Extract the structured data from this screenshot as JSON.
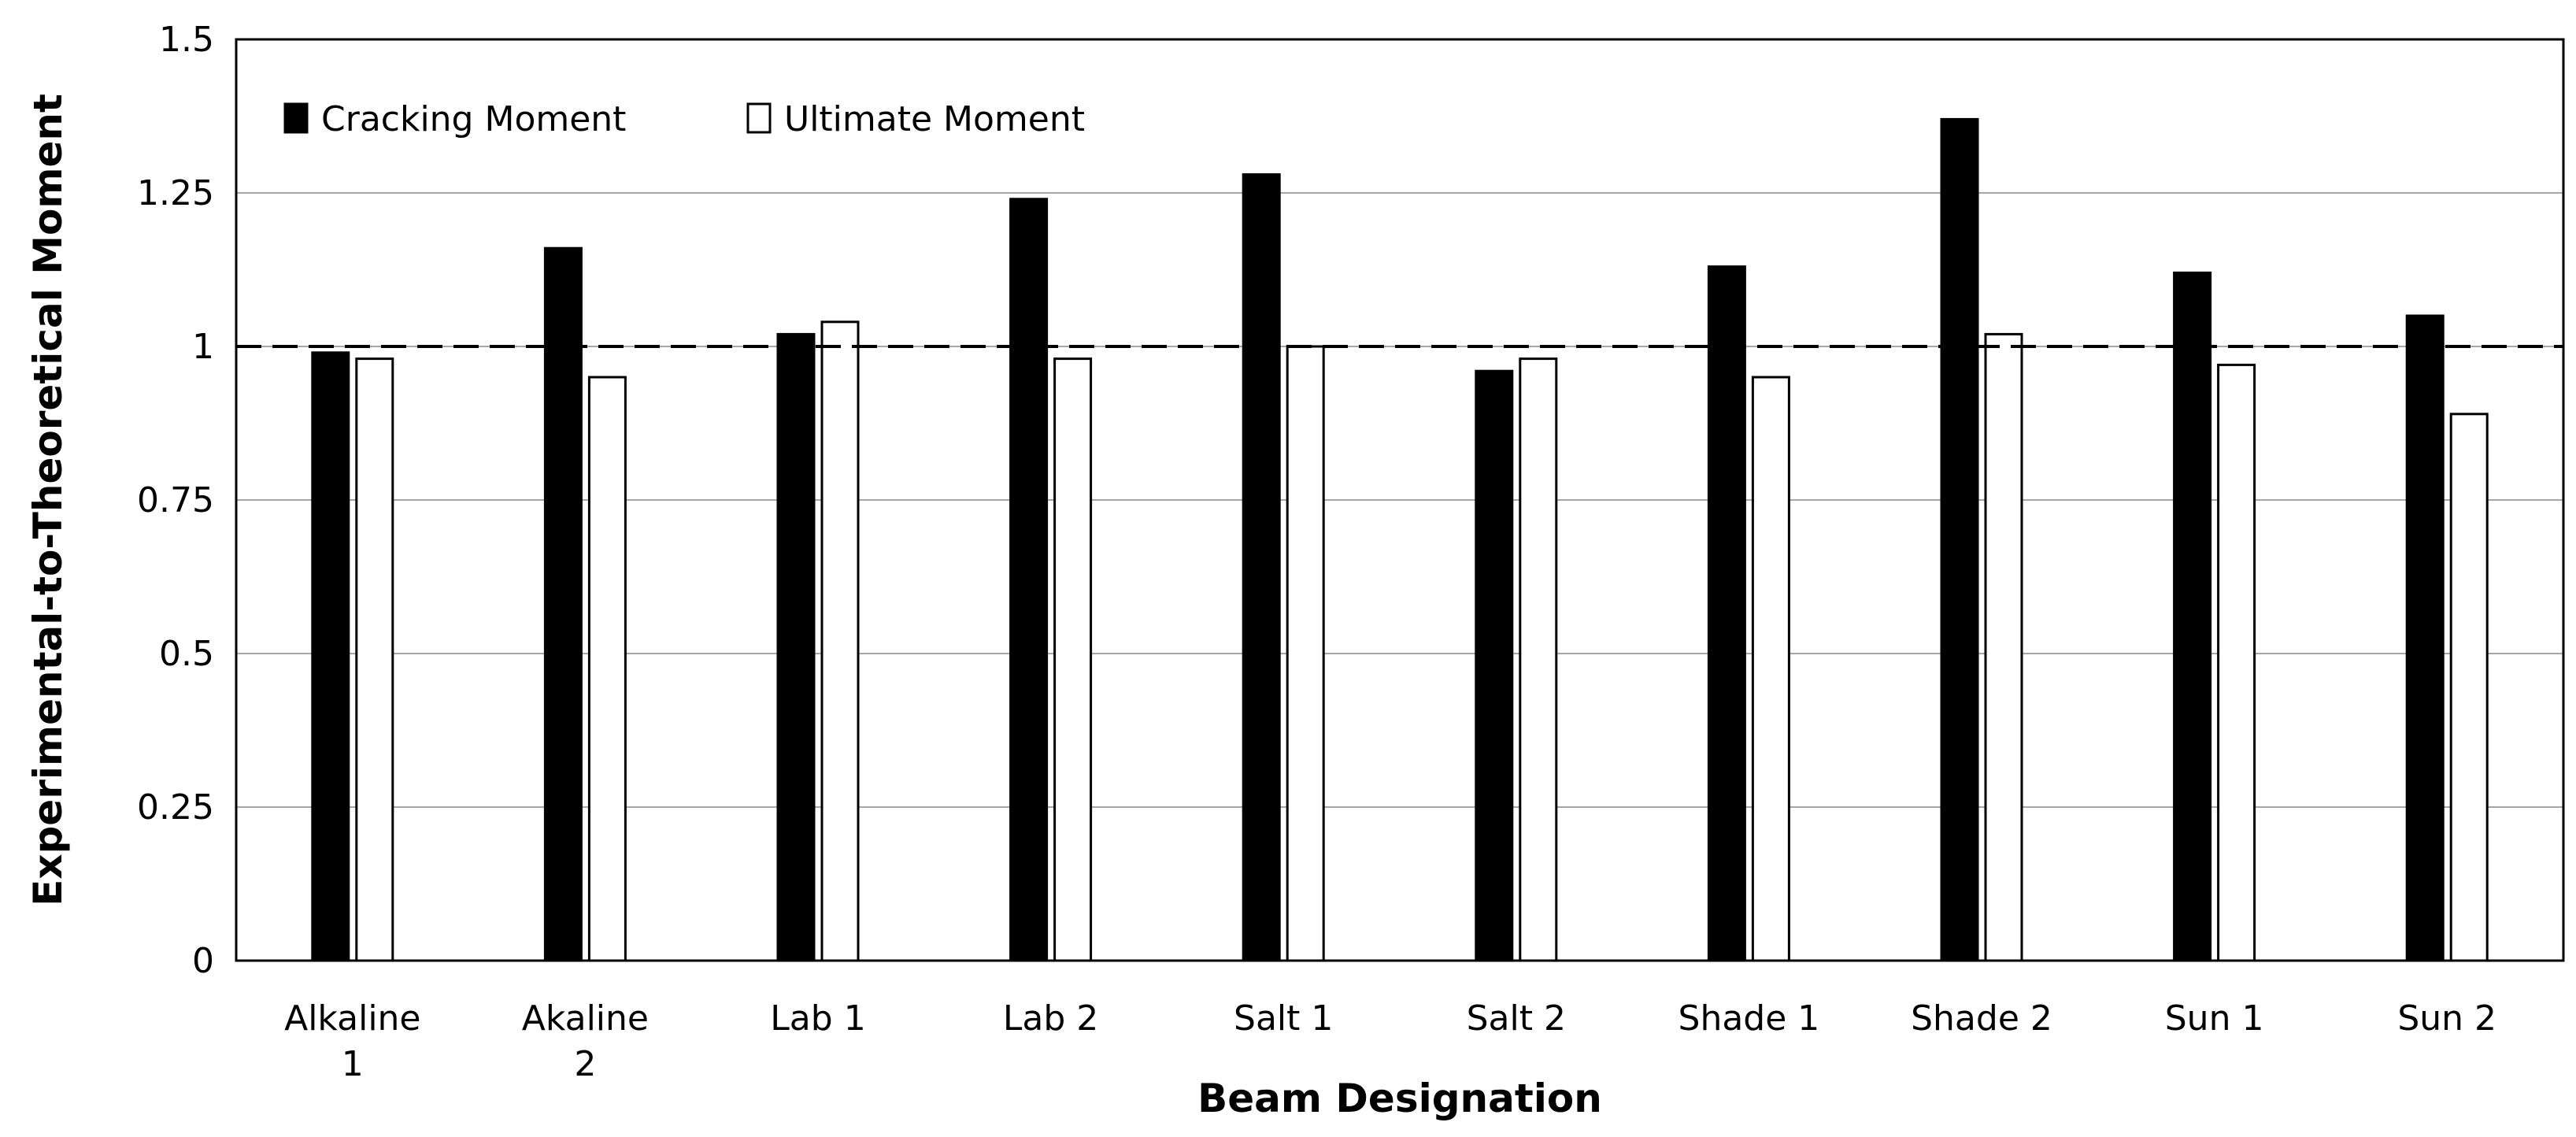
{
  "chart_data": {
    "type": "bar",
    "categories": [
      [
        "Alkaline",
        "1"
      ],
      [
        "Akaline",
        "2"
      ],
      [
        "Lab 1"
      ],
      [
        "Lab 2"
      ],
      [
        "Salt 1"
      ],
      [
        "Salt 2"
      ],
      [
        "Shade 1"
      ],
      [
        "Shade 2"
      ],
      [
        "Sun 1"
      ],
      [
        "Sun 2"
      ]
    ],
    "series": [
      {
        "name": "Cracking Moment",
        "color": "#000000",
        "values": [
          0.99,
          1.16,
          1.02,
          1.24,
          1.28,
          0.96,
          1.13,
          1.37,
          1.12,
          1.05
        ]
      },
      {
        "name": "Ultimate Moment",
        "color": "#ffffff",
        "values": [
          0.98,
          0.95,
          1.04,
          0.98,
          1.0,
          0.98,
          0.95,
          1.02,
          0.97,
          0.89
        ]
      }
    ],
    "xlabel": "Beam Designation",
    "ylabel": "Experimental-to-Theoretical Moment",
    "ylim": [
      0,
      1.5
    ],
    "yticks": [
      "0",
      "0.25",
      "0.5",
      "0.75",
      "1",
      "1.25",
      "1.5"
    ],
    "reference_line": 1,
    "grid": "horizontal",
    "legend_position": "top-left"
  }
}
